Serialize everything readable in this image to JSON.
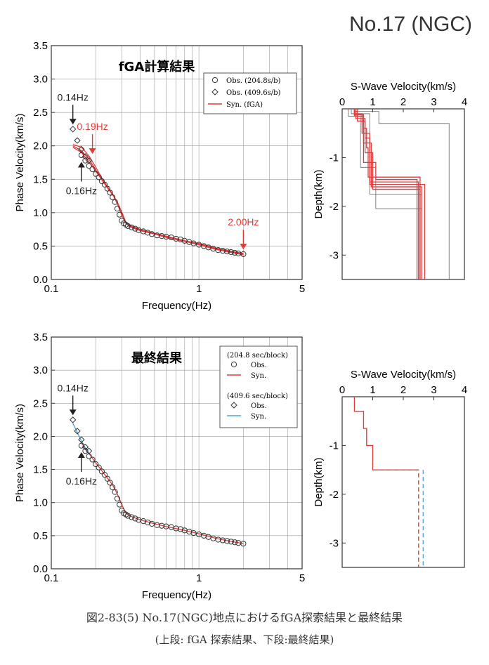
{
  "page": {
    "title": "No.17 (NGC)",
    "caption_line1": "図2-83(5) No.17(NGC)地点におけるfGA探索結果と最終結果",
    "caption_line2": "(上段: fGA 探索結果、下段:最終結果)"
  },
  "colors": {
    "syn_red": "#e23b3b",
    "syn_blue": "#4aa3d8",
    "obs": "#333333",
    "grid": "#9a9a9a",
    "annot_red": "#e23b3b"
  },
  "chart_data": [
    {
      "type": "scatter",
      "title": "fGA計算結果",
      "xlabel": "Frequency(Hz)",
      "ylabel": "Phase Velocity(km/s)",
      "x_scale": "log",
      "xlim": [
        0.1,
        5
      ],
      "ylim": [
        0.0,
        3.5
      ],
      "x_ticks": [
        "0.1",
        "1",
        "5"
      ],
      "y_ticks": [
        "0.0",
        "0.5",
        "1.0",
        "1.5",
        "2.0",
        "2.5",
        "3.0",
        "3.5"
      ],
      "grid": true,
      "legend_position": "top-right",
      "legend": [
        "Obs. (204.8s/b)",
        "Obs. (409.6s/b)",
        "Syn. (fGA)"
      ],
      "series": [
        {
          "name": "Obs. (204.8s/b)",
          "marker": "circle",
          "x": [
            0.16,
            0.17,
            0.18,
            0.19,
            0.2,
            0.21,
            0.22,
            0.23,
            0.24,
            0.25,
            0.26,
            0.27,
            0.28,
            0.29,
            0.3,
            0.31,
            0.32,
            0.33,
            0.35,
            0.37,
            0.39,
            0.42,
            0.45,
            0.48,
            0.52,
            0.56,
            0.6,
            0.65,
            0.7,
            0.75,
            0.8,
            0.86,
            0.92,
            1.0,
            1.08,
            1.16,
            1.25,
            1.35,
            1.45,
            1.55,
            1.65,
            1.75,
            1.85,
            2.0
          ],
          "y": [
            1.86,
            1.78,
            1.7,
            1.65,
            1.58,
            1.53,
            1.47,
            1.42,
            1.36,
            1.3,
            1.23,
            1.16,
            1.06,
            0.97,
            0.88,
            0.84,
            0.82,
            0.8,
            0.78,
            0.76,
            0.74,
            0.72,
            0.7,
            0.68,
            0.66,
            0.65,
            0.64,
            0.63,
            0.61,
            0.6,
            0.58,
            0.56,
            0.54,
            0.52,
            0.5,
            0.48,
            0.46,
            0.44,
            0.43,
            0.42,
            0.41,
            0.4,
            0.39,
            0.38
          ]
        },
        {
          "name": "Obs. (409.6s/b)",
          "marker": "diamond",
          "x": [
            0.14,
            0.15,
            0.16,
            0.17,
            0.18
          ],
          "y": [
            2.25,
            2.08,
            1.95,
            1.84,
            1.78
          ]
        }
      ],
      "syn_lines": [
        {
          "name": "Syn. (fGA)",
          "x": [
            0.14,
            0.16,
            0.18,
            0.2,
            0.22,
            0.24,
            0.26,
            0.28,
            0.3,
            0.32,
            0.34,
            0.4,
            0.5,
            0.6,
            0.8,
            1.0,
            1.3,
            1.6,
            2.0
          ],
          "y": [
            2.0,
            1.93,
            1.8,
            1.64,
            1.5,
            1.38,
            1.28,
            1.15,
            1.0,
            0.85,
            0.8,
            0.74,
            0.68,
            0.64,
            0.58,
            0.53,
            0.46,
            0.42,
            0.38
          ]
        },
        {
          "name": "Syn. (fGA)",
          "x": [
            0.14,
            0.16,
            0.18,
            0.2,
            0.22,
            0.24,
            0.26,
            0.28,
            0.3,
            0.32,
            0.34,
            0.4,
            0.5,
            0.6,
            0.8,
            1.0,
            1.3,
            1.6,
            2.0
          ],
          "y": [
            2.02,
            1.98,
            1.85,
            1.68,
            1.52,
            1.39,
            1.28,
            1.13,
            0.97,
            0.84,
            0.79,
            0.73,
            0.68,
            0.63,
            0.57,
            0.52,
            0.45,
            0.41,
            0.37
          ]
        },
        {
          "name": "Syn. (fGA)",
          "x": [
            0.14,
            0.16,
            0.18,
            0.2,
            0.22,
            0.24,
            0.26,
            0.28,
            0.3,
            0.32,
            0.34,
            0.4,
            0.5,
            0.6,
            0.8,
            1.0,
            1.3,
            1.6,
            2.0
          ],
          "y": [
            1.98,
            1.9,
            1.76,
            1.62,
            1.49,
            1.37,
            1.27,
            1.16,
            1.01,
            0.86,
            0.81,
            0.75,
            0.69,
            0.65,
            0.58,
            0.54,
            0.47,
            0.43,
            0.39
          ]
        }
      ],
      "annotations": [
        {
          "text": "0.14Hz",
          "x": 0.14,
          "color": "#222222",
          "label_pos": "above"
        },
        {
          "text": "0.19Hz",
          "x": 0.19,
          "color": "#e23b3b",
          "label_pos": "above"
        },
        {
          "text": "0.16Hz",
          "x": 0.16,
          "color": "#222222",
          "label_pos": "below"
        },
        {
          "text": "2.00Hz",
          "x": 2.0,
          "color": "#e23b3b",
          "label_pos": "above"
        }
      ]
    },
    {
      "type": "line",
      "title": "S-Wave Velocity(km/s)",
      "xlabel": "S-Wave Velocity(km/s)",
      "ylabel": "Depth(km)",
      "xlim": [
        0,
        4
      ],
      "ylim": [
        -3.5,
        0
      ],
      "x_ticks": [
        "0",
        "1",
        "2",
        "3",
        "4"
      ],
      "y_ticks": [
        "-1",
        "-2",
        "-3"
      ],
      "grid": false,
      "profiles": [
        {
          "color": "gray",
          "vs": [
            0.2,
            0.2,
            0.6,
            0.6,
            1.1,
            1.1,
            2.6,
            2.6
          ],
          "depth": [
            0,
            -0.15,
            -0.15,
            -1.2,
            -1.2,
            -2.05,
            -2.05,
            -3.5
          ]
        },
        {
          "color": "gray",
          "vs": [
            0.4,
            0.4,
            1.2,
            1.2,
            3.5,
            3.5
          ],
          "depth": [
            0,
            -0.05,
            -0.05,
            -0.3,
            -0.3,
            -3.5
          ]
        },
        {
          "color": "gray",
          "vs": [
            0.3,
            0.3,
            0.9,
            0.9,
            2.6,
            2.6
          ],
          "depth": [
            0,
            -0.1,
            -0.1,
            -1.75,
            -1.75,
            -3.5
          ]
        },
        {
          "color": "red",
          "vs": [
            0.4,
            0.4,
            0.7,
            0.7,
            0.8,
            0.8,
            0.85,
            0.85,
            2.55,
            2.55
          ],
          "depth": [
            0,
            -0.15,
            -0.15,
            -0.4,
            -0.4,
            -0.8,
            -0.8,
            -1.4,
            -1.4,
            -3.5
          ]
        },
        {
          "color": "red",
          "vs": [
            0.45,
            0.45,
            0.75,
            0.75,
            0.9,
            0.9,
            2.7,
            2.7
          ],
          "depth": [
            0,
            -0.2,
            -0.2,
            -0.6,
            -0.6,
            -1.55,
            -1.55,
            -3.5
          ]
        },
        {
          "color": "red",
          "vs": [
            0.4,
            0.4,
            0.65,
            0.65,
            0.9,
            0.9,
            2.5,
            2.5
          ],
          "depth": [
            0,
            -0.1,
            -0.1,
            -0.5,
            -0.5,
            -1.5,
            -1.5,
            -3.5
          ]
        },
        {
          "color": "red",
          "vs": [
            0.45,
            0.45,
            0.7,
            0.7,
            0.95,
            0.95,
            2.6,
            2.6
          ],
          "depth": [
            0,
            -0.15,
            -0.15,
            -0.7,
            -0.7,
            -1.6,
            -1.6,
            -3.5
          ]
        },
        {
          "color": "red",
          "vs": [
            0.5,
            0.5,
            0.75,
            0.75,
            1.0,
            1.0,
            2.55,
            2.55
          ],
          "depth": [
            0,
            -0.25,
            -0.25,
            -0.9,
            -0.9,
            -1.65,
            -1.65,
            -3.5
          ]
        },
        {
          "color": "red",
          "vs": [
            0.4,
            0.4,
            0.7,
            0.7,
            1.1,
            1.1,
            2.45,
            2.45
          ],
          "depth": [
            0,
            -0.12,
            -0.12,
            -1.1,
            -1.1,
            -1.45,
            -1.45,
            -3.5
          ]
        }
      ]
    },
    {
      "type": "scatter",
      "title": "最終結果",
      "xlabel": "Frequency(Hz)",
      "ylabel": "Phase Velocity(km/s)",
      "x_scale": "log",
      "xlim": [
        0.1,
        5
      ],
      "ylim": [
        0.0,
        3.5
      ],
      "x_ticks": [
        "0.1",
        "1",
        "5"
      ],
      "y_ticks": [
        "0.0",
        "0.5",
        "1.0",
        "1.5",
        "2.0",
        "2.5",
        "3.0",
        "3.5"
      ],
      "grid": true,
      "legend_position": "top-right",
      "legend_groups": [
        {
          "header": "(204.8 sec/block)",
          "items": [
            "Obs.",
            "Syn."
          ]
        },
        {
          "header": "(409.6 sec/block)",
          "items": [
            "Obs.",
            "Syn."
          ]
        }
      ],
      "series": [
        {
          "name": "Obs.",
          "group": "(204.8 sec/block)",
          "marker": "circle",
          "x": [
            0.16,
            0.17,
            0.18,
            0.19,
            0.2,
            0.21,
            0.22,
            0.23,
            0.24,
            0.25,
            0.26,
            0.27,
            0.28,
            0.29,
            0.3,
            0.31,
            0.32,
            0.33,
            0.35,
            0.37,
            0.39,
            0.42,
            0.45,
            0.48,
            0.52,
            0.56,
            0.6,
            0.65,
            0.7,
            0.75,
            0.8,
            0.86,
            0.92,
            1.0,
            1.08,
            1.16,
            1.25,
            1.35,
            1.45,
            1.55,
            1.65,
            1.75,
            1.85,
            2.0
          ],
          "y": [
            1.86,
            1.78,
            1.7,
            1.65,
            1.58,
            1.53,
            1.47,
            1.42,
            1.36,
            1.3,
            1.23,
            1.16,
            1.06,
            0.97,
            0.88,
            0.84,
            0.82,
            0.8,
            0.78,
            0.76,
            0.74,
            0.72,
            0.7,
            0.68,
            0.66,
            0.65,
            0.64,
            0.63,
            0.61,
            0.6,
            0.58,
            0.56,
            0.54,
            0.52,
            0.5,
            0.48,
            0.46,
            0.44,
            0.43,
            0.42,
            0.41,
            0.4,
            0.39,
            0.38
          ]
        },
        {
          "name": "Obs.",
          "group": "(409.6 sec/block)",
          "marker": "diamond",
          "x": [
            0.14,
            0.15,
            0.16,
            0.17,
            0.18
          ],
          "y": [
            2.25,
            2.08,
            1.95,
            1.84,
            1.78
          ]
        }
      ],
      "syn_lines": [
        {
          "name": "Syn.",
          "group": "(204.8 sec/block)",
          "color": "red",
          "x": [
            0.16,
            0.18,
            0.2,
            0.22,
            0.24,
            0.26,
            0.28,
            0.3,
            0.32,
            0.34,
            0.4,
            0.5,
            0.6,
            0.8,
            1.0,
            1.3,
            1.6,
            2.0
          ],
          "y": [
            1.9,
            1.74,
            1.6,
            1.48,
            1.37,
            1.27,
            1.13,
            0.97,
            0.84,
            0.8,
            0.74,
            0.68,
            0.64,
            0.58,
            0.53,
            0.46,
            0.42,
            0.38
          ]
        },
        {
          "name": "Syn.",
          "group": "(409.6 sec/block)",
          "color": "blue",
          "x": [
            0.14,
            0.15,
            0.16,
            0.17,
            0.18
          ],
          "y": [
            2.2,
            2.06,
            1.93,
            1.83,
            1.75
          ]
        }
      ],
      "annotations": [
        {
          "text": "0.14Hz",
          "x": 0.14,
          "color": "#222222",
          "label_pos": "above"
        },
        {
          "text": "0.16Hz",
          "x": 0.16,
          "color": "#222222",
          "label_pos": "below"
        }
      ]
    },
    {
      "type": "line",
      "title": "S-Wave Velocity(km/s)",
      "xlabel": "S-Wave Velocity(km/s)",
      "ylabel": "Depth(km)",
      "xlim": [
        0,
        4
      ],
      "ylim": [
        -3.5,
        0
      ],
      "x_ticks": [
        "0",
        "1",
        "2",
        "3",
        "4"
      ],
      "y_ticks": [
        "-1",
        "-2",
        "-3"
      ],
      "grid": false,
      "profiles": [
        {
          "color": "red",
          "vs": [
            0.4,
            0.4,
            0.7,
            0.7,
            0.8,
            0.8,
            1.0,
            1.0,
            2.5,
            2.5
          ],
          "depth": [
            0,
            -0.3,
            -0.3,
            -0.65,
            -0.65,
            -1.0,
            -1.0,
            -1.5,
            -1.5,
            -3.5
          ],
          "dashed_from": 1.5
        },
        {
          "color": "blue",
          "vs": [
            2.65,
            2.65
          ],
          "depth": [
            -1.5,
            -3.5
          ],
          "dashed_from": 1.5
        }
      ]
    }
  ]
}
